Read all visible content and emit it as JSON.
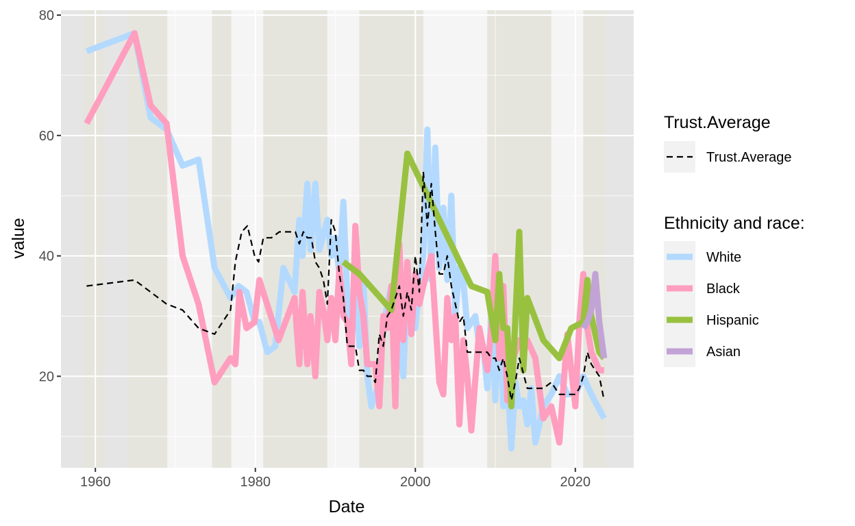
{
  "chart_data": {
    "type": "line",
    "title": "",
    "xlabel": "Date",
    "ylabel": "value",
    "xlim": [
      1955.7,
      2027.3
    ],
    "ylim": [
      4.8,
      80.8
    ],
    "x_ticks": [
      "1960",
      "1980",
      "2000",
      "2020"
    ],
    "y_ticks": [
      "20",
      "40",
      "60",
      "80"
    ],
    "grid": true,
    "legend_position": "right",
    "background_bands": [
      {
        "start": 1958.5,
        "end": 1961.0,
        "color": "#e5e5dd"
      },
      {
        "start": 1964.0,
        "end": 1969.0,
        "color": "#e5e5dd"
      },
      {
        "start": 1969.0,
        "end": 1974.6,
        "color": "#f5f5f5"
      },
      {
        "start": 1974.6,
        "end": 1977.0,
        "color": "#e5e5dd"
      },
      {
        "start": 1977.0,
        "end": 1981.0,
        "color": "#f5f5f5"
      },
      {
        "start": 1981.0,
        "end": 1989.0,
        "color": "#e5e5dd"
      },
      {
        "start": 1989.0,
        "end": 1993.0,
        "color": "#f5f5f5"
      },
      {
        "start": 1993.0,
        "end": 2001.0,
        "color": "#e5e5dd"
      },
      {
        "start": 2001.0,
        "end": 2009.0,
        "color": "#f5f5f5"
      },
      {
        "start": 2009.0,
        "end": 2017.0,
        "color": "#e5e5dd"
      },
      {
        "start": 2017.0,
        "end": 2021.0,
        "color": "#f5f5f5"
      },
      {
        "start": 2021.0,
        "end": 2023.8,
        "color": "#e5e5dd"
      }
    ],
    "legend_groups": [
      {
        "title": "Trust.Average",
        "entries": [
          {
            "label": "Trust.Average",
            "style": "dashed",
            "color": "#000000"
          }
        ]
      },
      {
        "title": "Ethnicity and race:",
        "entries": [
          {
            "label": "White",
            "color": "#b3d9ff"
          },
          {
            "label": "Black",
            "color": "#ff9ebf"
          },
          {
            "label": "Hispanic",
            "color": "#99c140"
          },
          {
            "label": "Asian",
            "color": "#c2a3d6"
          }
        ]
      }
    ],
    "series": [
      {
        "name": "White",
        "color": "#b3d9ff",
        "style": "solid",
        "x": [
          1958.9,
          1964.9,
          1966.9,
          1968.9,
          1970.9,
          1972.9,
          1974.9,
          1976.9,
          1977.9,
          1978.9,
          1979.9,
          1980.5,
          1981.5,
          1982.5,
          1983.5,
          1984.9,
          1985.5,
          1985.9,
          1986.5,
          1986.9,
          1987.5,
          1988.0,
          1989.0,
          1989.5,
          1990.0,
          1990.5,
          1991.0,
          1991.5,
          1992.0,
          1992.5,
          1993.0,
          1993.5,
          1994.0,
          1994.5,
          1995.0,
          1995.5,
          1996.0,
          1996.5,
          1997.0,
          1997.5,
          1998.0,
          1998.5,
          1999.0,
          1999.5,
          2000.0,
          2000.5,
          2001.0,
          2001.5,
          2002.0,
          2002.5,
          2003.0,
          2003.5,
          2004.0,
          2004.5,
          2005.0,
          2005.5,
          2006.0,
          2006.5,
          2007.0,
          2007.5,
          2008.0,
          2008.5,
          2009.0,
          2009.5,
          2010.0,
          2010.5,
          2011.0,
          2011.5,
          2012.0,
          2012.5,
          2013.0,
          2013.5,
          2014.0,
          2014.5,
          2015.0,
          2016.0,
          2017.0,
          2018.0,
          2019.0,
          2020.0,
          2021.0,
          2022.0,
          2023.6
        ],
        "y": [
          74,
          77,
          63,
          61,
          55,
          56,
          38,
          33,
          35,
          34,
          29,
          29,
          24,
          25,
          38,
          34,
          46,
          40,
          52,
          41,
          52,
          41,
          46,
          40,
          43,
          37,
          49,
          33,
          23,
          41,
          25,
          36,
          20,
          15,
          17,
          19,
          28,
          32,
          35,
          23,
          26,
          20,
          36,
          29,
          28,
          35,
          40,
          61,
          36,
          58,
          38,
          48,
          36,
          50,
          30,
          38,
          36,
          28,
          29,
          30,
          25,
          25,
          18,
          30,
          16,
          33,
          15,
          20,
          8,
          19,
          15,
          16,
          12,
          18,
          9,
          15,
          17,
          20,
          17,
          17,
          20,
          17,
          13
        ]
      },
      {
        "name": "Black",
        "color": "#ff9ebf",
        "style": "solid",
        "x": [
          1958.9,
          1964.9,
          1966.9,
          1968.9,
          1970.9,
          1972.9,
          1974.9,
          1976.9,
          1977.5,
          1978.0,
          1978.9,
          1979.9,
          1980.5,
          1982.9,
          1984.9,
          1985.5,
          1985.9,
          1986.5,
          1986.9,
          1987.5,
          1988.0,
          1988.5,
          1989.0,
          1989.5,
          1990.0,
          1990.5,
          1991.0,
          1991.5,
          1992.0,
          1992.5,
          1993.0,
          1993.5,
          1994.0,
          1995.0,
          1995.5,
          1996.0,
          1996.5,
          1997.0,
          1997.5,
          1998.0,
          1998.5,
          1999.0,
          1999.5,
          2000.0,
          2000.5,
          2001.0,
          2002.0,
          2003.0,
          2003.5,
          2004.0,
          2004.5,
          2005.0,
          2005.5,
          2006.0,
          2006.5,
          2007.0,
          2008.0,
          2009.0,
          2009.5,
          2010.0,
          2010.5,
          2011.0,
          2011.5,
          2012.0,
          2013.0,
          2014.0,
          2015.0,
          2016.0,
          2017.0,
          2018.0,
          2019.0,
          2020.0,
          2020.5,
          2021.0,
          2021.5,
          2022.0,
          2023.0,
          2023.6
        ],
        "y": [
          62,
          77,
          65,
          62,
          40,
          32,
          19,
          23,
          22,
          34,
          28,
          29,
          36,
          26,
          33,
          22,
          34,
          22,
          30,
          20,
          34,
          31,
          26,
          33,
          26,
          38,
          30,
          29,
          22,
          45,
          34,
          30,
          22,
          22,
          15,
          30,
          28,
          35,
          15,
          42,
          26,
          39,
          27,
          37,
          32,
          35,
          40,
          19,
          17,
          33,
          26,
          30,
          12,
          26,
          20,
          11,
          28,
          21,
          28,
          40,
          23,
          35,
          16,
          22,
          26,
          26,
          23,
          13,
          15,
          9,
          27,
          15,
          29,
          37,
          28,
          24,
          21,
          21
        ]
      },
      {
        "name": "Hispanic",
        "color": "#99c140",
        "style": "solid",
        "x": [
          1991.0,
          1993.0,
          1997.0,
          1999.0,
          2007.0,
          2009.0,
          2010.0,
          2010.5,
          2011.0,
          2011.5,
          2012.0,
          2013.0,
          2013.5,
          2014.0,
          2016.0,
          2018.0,
          2019.5,
          2021.0,
          2021.5,
          2022.0,
          2023.0,
          2023.6
        ],
        "y": [
          39,
          37,
          31,
          57,
          35,
          34,
          26,
          37,
          28,
          28,
          15,
          44,
          21,
          33,
          26,
          23,
          28,
          29,
          36,
          30,
          24,
          23
        ]
      },
      {
        "name": "Asian",
        "color": "#c2a3d6",
        "style": "solid",
        "x": [
          2021.0,
          2021.5,
          2022.0,
          2022.5,
          2023.0,
          2023.6
        ],
        "y": [
          28,
          29,
          31,
          37,
          29,
          23
        ]
      },
      {
        "name": "Trust.Average",
        "color": "#000000",
        "style": "dashed",
        "x": [
          1958.9,
          1964.9,
          1966.9,
          1968.9,
          1970.9,
          1972.9,
          1974.9,
          1976.9,
          1977.5,
          1978.3,
          1979.0,
          1979.9,
          1980.4,
          1981.0,
          1982.0,
          1983.0,
          1984.0,
          1985.0,
          1985.5,
          1986.0,
          1986.5,
          1987.0,
          1987.5,
          1988.0,
          1988.5,
          1989.0,
          1989.5,
          1990.0,
          1990.5,
          1991.0,
          1991.5,
          1992.0,
          1992.5,
          1993.0,
          1993.5,
          1994.0,
          1994.5,
          1995.0,
          1995.5,
          1996.0,
          1996.5,
          1997.0,
          1997.5,
          1998.0,
          1998.5,
          1999.0,
          1999.5,
          2000.0,
          2000.5,
          2001.0,
          2001.5,
          2002.0,
          2002.5,
          2003.0,
          2003.5,
          2004.0,
          2004.5,
          2005.0,
          2005.5,
          2006.0,
          2006.5,
          2007.0,
          2008.0,
          2009.0,
          2009.5,
          2010.0,
          2010.5,
          2011.0,
          2011.5,
          2012.0,
          2012.5,
          2013.0,
          2014.0,
          2015.0,
          2016.0,
          2017.0,
          2018.0,
          2019.0,
          2020.0,
          2020.5,
          2021.0,
          2021.5,
          2022.0,
          2022.5,
          2023.0,
          2023.6
        ],
        "y": [
          35,
          36,
          34,
          32,
          31,
          28,
          27,
          31,
          39,
          44,
          45,
          40,
          39,
          43,
          43,
          44,
          44,
          44,
          42,
          44,
          43,
          43,
          39,
          38,
          36,
          32,
          46,
          44,
          37,
          33,
          25,
          25,
          25,
          21,
          21,
          20,
          20,
          19,
          27,
          25,
          30,
          31,
          33,
          35,
          30,
          34,
          31,
          40,
          34,
          54,
          45,
          52,
          44,
          37,
          37,
          40,
          35,
          32,
          29,
          30,
          24,
          24,
          24,
          24,
          23,
          23,
          21,
          23,
          20,
          16,
          19,
          23,
          18,
          18,
          18,
          19,
          17,
          17,
          17,
          18,
          20,
          24,
          22,
          21,
          20,
          16
        ]
      }
    ]
  }
}
